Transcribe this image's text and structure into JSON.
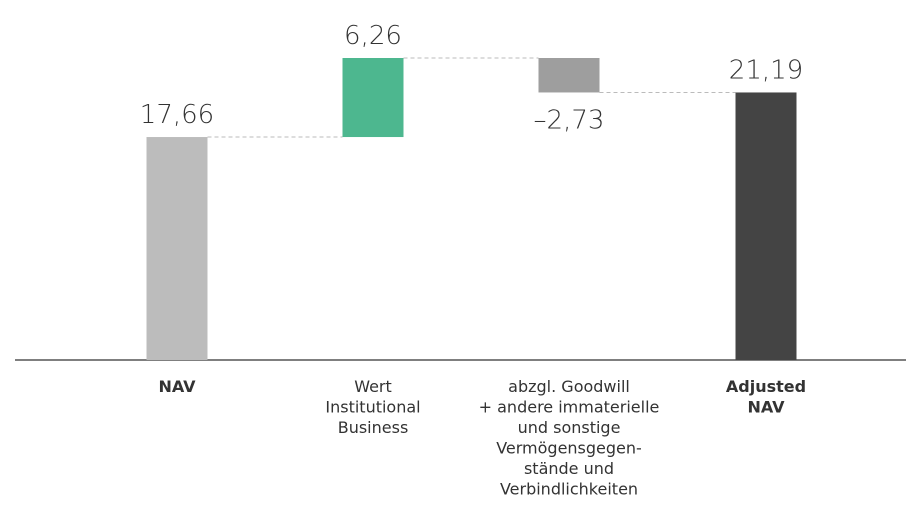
{
  "chart_data": {
    "type": "waterfall",
    "categories": [
      [
        "NAV"
      ],
      [
        "Wert",
        "Institutional",
        "Business"
      ],
      [
        "abzgl. Goodwill",
        "+ andere immaterielle",
        "und sonstige",
        "Vermögensgegen-",
        "stände und",
        "Verbindlichkeiten"
      ],
      [
        "Adjusted",
        "NAV"
      ]
    ],
    "values": [
      17.66,
      6.26,
      -2.73,
      21.19
    ],
    "value_labels": [
      "17,66",
      "6,26",
      "–2,73",
      "21,19"
    ],
    "measure": [
      "absolute",
      "relative",
      "relative",
      "total"
    ],
    "colors": [
      "#bcbcbc",
      "#4db78f",
      "#9e9e9e",
      "#444444"
    ],
    "bold_categories": [
      true,
      false,
      false,
      true
    ]
  }
}
